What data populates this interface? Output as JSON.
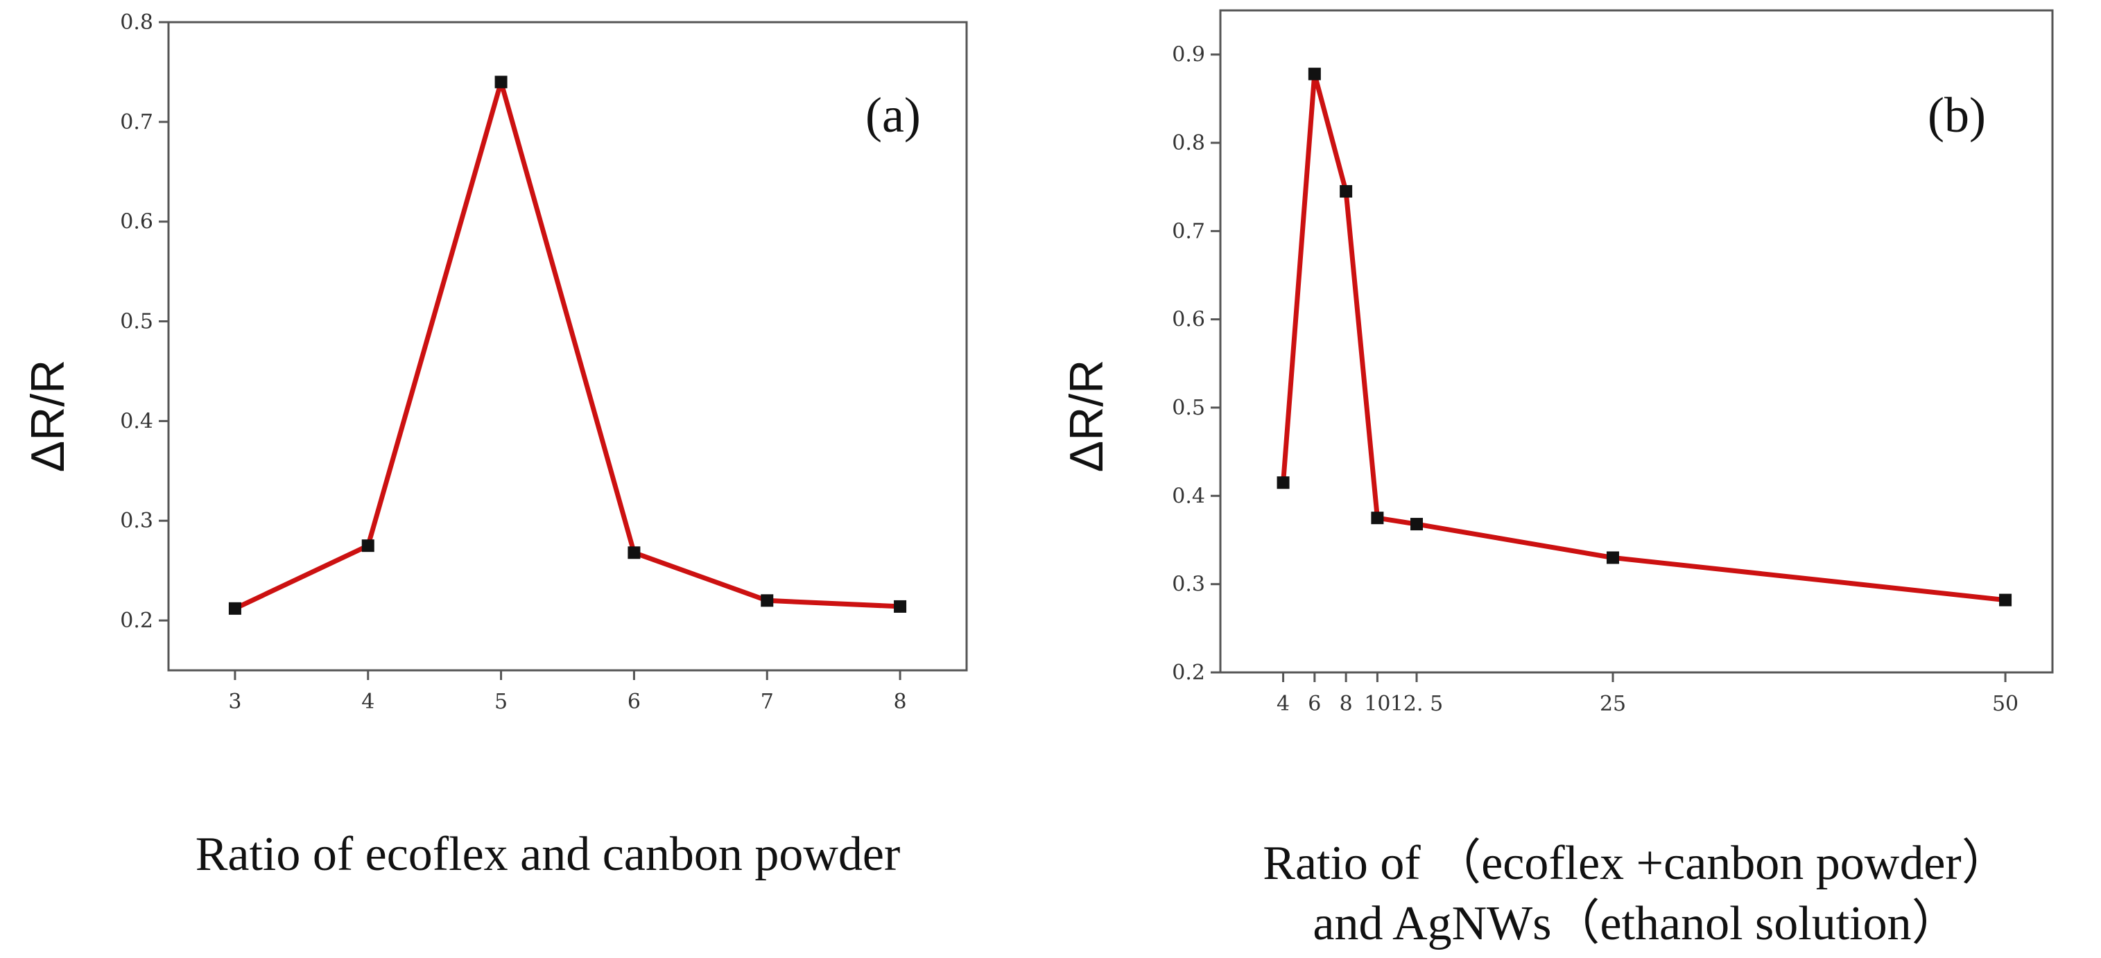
{
  "colors": {
    "line": "#cc1111",
    "marker": "#111111",
    "axis": "#555555"
  },
  "chart_data": [
    {
      "type": "line",
      "panel_label": "(a)",
      "ylabel": "ΔR/R",
      "xlabel": "Ratio of ecoflex and canbon powder",
      "xlim": [
        2.5,
        8.5
      ],
      "ylim": [
        0.15,
        0.8
      ],
      "xticks": [
        3,
        4,
        5,
        6,
        7,
        8
      ],
      "xtick_labels": [
        "3",
        "4",
        "5",
        "6",
        "7",
        "8"
      ],
      "yticks": [
        0.2,
        0.3,
        0.4,
        0.5,
        0.6,
        0.7,
        0.8
      ],
      "ytick_labels": [
        "0.2",
        "0.3",
        "0.4",
        "0.5",
        "0.6",
        "0.7",
        "0.8"
      ],
      "x": [
        3,
        4,
        5,
        6,
        7,
        8
      ],
      "y": [
        0.212,
        0.275,
        0.74,
        0.268,
        0.22,
        0.214
      ]
    },
    {
      "type": "line",
      "panel_label": "(b)",
      "ylabel": "ΔR/R",
      "xlabel_lines": [
        "Ratio of （ecoflex +canbon powder）",
        "and AgNWs（ethanol solution）"
      ],
      "xlim": [
        0,
        53
      ],
      "ylim": [
        0.2,
        0.95
      ],
      "xticks": [
        4,
        6,
        8,
        10,
        12.5,
        25,
        50
      ],
      "xtick_labels": [
        "4",
        "6",
        "8",
        "10",
        "12. 5",
        "25",
        "50"
      ],
      "yticks": [
        0.2,
        0.3,
        0.4,
        0.5,
        0.6,
        0.7,
        0.8,
        0.9
      ],
      "ytick_labels": [
        "0.2",
        "0.3",
        "0.4",
        "0.5",
        "0.6",
        "0.7",
        "0.8",
        "0.9"
      ],
      "x": [
        4,
        6,
        8,
        10,
        12.5,
        25,
        50
      ],
      "y": [
        0.415,
        0.878,
        0.745,
        0.375,
        0.368,
        0.33,
        0.282
      ]
    }
  ]
}
